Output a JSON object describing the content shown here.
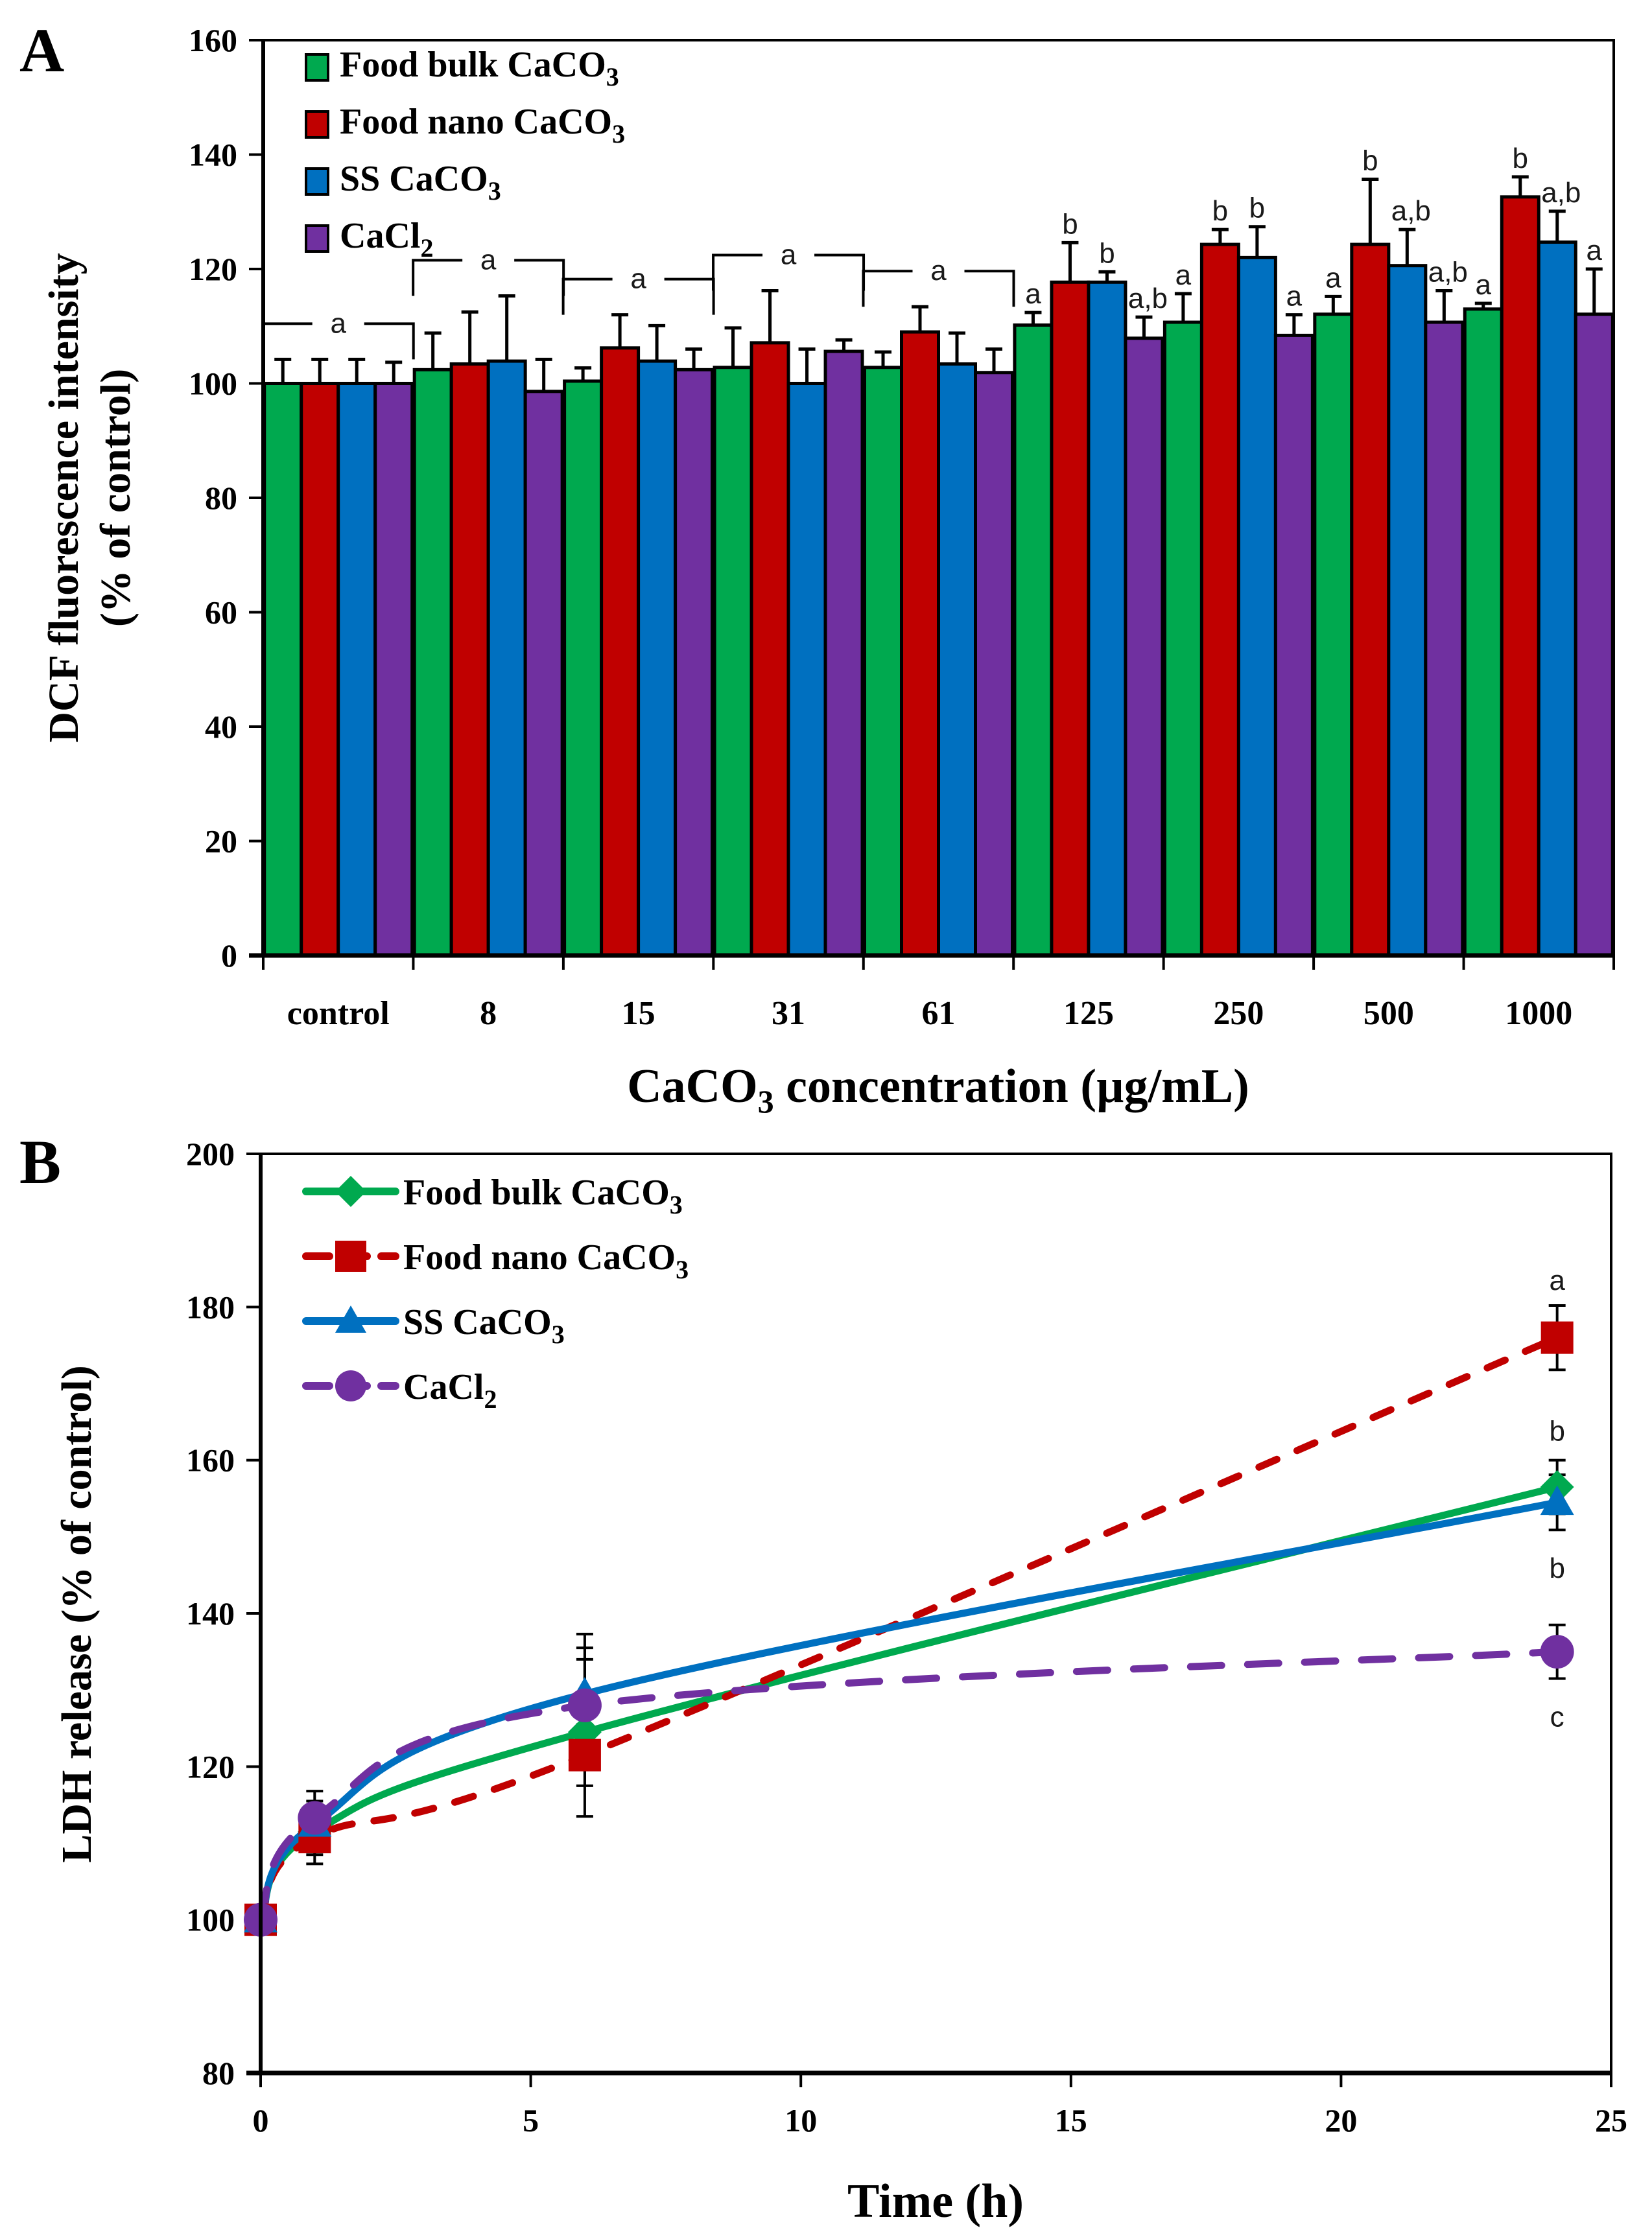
{
  "chart_data": [
    {
      "panel": "A",
      "type": "bar",
      "title": "",
      "xlabel": "CaCO3 concentration (µg/mL)",
      "xlabel_parts": {
        "pre": "CaCO",
        "sub": "3",
        "post": " concentration (µg/mL)"
      },
      "ylabel_line1": "DCF fluorescence intensity",
      "ylabel_line2": "(% of control)",
      "ylim": [
        0,
        160
      ],
      "yticks": [
        0,
        20,
        40,
        60,
        80,
        100,
        120,
        140,
        160
      ],
      "grid": false,
      "legend_position": "top-left",
      "categories": [
        "control",
        "8",
        "15",
        "31",
        "61",
        "125",
        "250",
        "500",
        "1000"
      ],
      "series": [
        {
          "name": "Food bulk CaCO3",
          "name_pre": "Food bulk CaCO",
          "name_sub": "3",
          "color": "#00A94F",
          "values": [
            100,
            102.4,
            100.4,
            102.8,
            102.8,
            110.2,
            110.7,
            112.1,
            113.0
          ],
          "error": [
            4.2,
            6.4,
            2.3,
            6.9,
            2.7,
            2.2,
            5.0,
            3.1,
            1.0
          ],
          "letters": [
            "",
            "",
            "",
            "",
            "",
            "a",
            "a",
            "a",
            "a"
          ]
        },
        {
          "name": "Food nano CaCO3",
          "name_pre": "Food nano CaCO",
          "name_sub": "3",
          "color": "#C00000",
          "values": [
            100,
            103.4,
            106.2,
            107.1,
            109.0,
            117.7,
            124.3,
            124.3,
            132.6
          ],
          "error": [
            4.2,
            9.1,
            5.8,
            9.1,
            4.4,
            6.9,
            2.6,
            11.4,
            3.5
          ],
          "letters": [
            "",
            "",
            "",
            "",
            "",
            "b",
            "b",
            "b",
            "b"
          ]
        },
        {
          "name": "SS CaCO3",
          "name_pre": "SS CaCO",
          "name_sub": "3",
          "color": "#0070C0",
          "values": [
            100,
            103.9,
            103.9,
            100,
            103.4,
            117.7,
            122.0,
            120.6,
            124.7
          ],
          "error": [
            4.2,
            11.4,
            6.2,
            6.0,
            5.4,
            1.8,
            5.4,
            6.3,
            5.4
          ],
          "letters": [
            "",
            "",
            "",
            "",
            "",
            "b",
            "b",
            "a,b",
            "a,b"
          ]
        },
        {
          "name": "CaCl2",
          "name_pre": "CaCl",
          "name_sub": "2",
          "color": "#7030A0",
          "values": [
            100,
            98.6,
            102.4,
            105.6,
            101.9,
            107.9,
            108.4,
            110.7,
            112.1
          ],
          "error": [
            3.7,
            5.6,
            3.6,
            2.0,
            4.1,
            3.7,
            3.6,
            5.5,
            7.9
          ],
          "letters": [
            "",
            "",
            "",
            "",
            "",
            "a,b",
            "a",
            "a,b",
            "a"
          ]
        }
      ],
      "group_brackets": [
        {
          "category": "control",
          "label": "a"
        },
        {
          "category": "8",
          "label": "a"
        },
        {
          "category": "15",
          "label": "a"
        },
        {
          "category": "31",
          "label": "a"
        },
        {
          "category": "61",
          "label": "a"
        }
      ]
    },
    {
      "panel": "B",
      "type": "line",
      "title": "",
      "xlabel": "Time (h)",
      "ylabel": "LDH release (% of control)",
      "xlim": [
        0,
        25
      ],
      "ylim": [
        80,
        200
      ],
      "xticks": [
        0,
        5,
        10,
        15,
        20,
        25
      ],
      "yticks": [
        80,
        100,
        120,
        140,
        160,
        180,
        200
      ],
      "grid": false,
      "legend_position": "top-left",
      "x": [
        0,
        1,
        6,
        24
      ],
      "series": [
        {
          "name": "Food bulk CaCO3",
          "name_pre": "Food bulk CaCO",
          "name_sub": "3",
          "color": "#00A94F",
          "marker": "diamond",
          "line": "solid",
          "values": [
            100,
            111.5,
            124.5,
            156.5
          ],
          "error": [
            0,
            3,
            11,
            3.5
          ],
          "end_letter": "b"
        },
        {
          "name": "Food nano CaCO3",
          "name_pre": "Food nano CaCO",
          "name_sub": "3",
          "color": "#C00000",
          "marker": "square",
          "line": "dashed",
          "values": [
            100,
            110.8,
            121.5,
            176
          ],
          "error": [
            0,
            3.5,
            4,
            4.2
          ],
          "end_letter": "a"
        },
        {
          "name": "SS CaCO3",
          "name_pre": "SS CaCO",
          "name_sub": "3",
          "color": "#0070C0",
          "marker": "triangle",
          "line": "solid",
          "values": [
            100,
            112.5,
            129.5,
            154.5
          ],
          "error": [
            0,
            3,
            7.8,
            3.6
          ],
          "end_letter": "b"
        },
        {
          "name": "CaCl2",
          "name_pre": "CaCl",
          "name_sub": "2",
          "color": "#7030A0",
          "marker": "circle",
          "line": "dashed",
          "values": [
            100,
            113.3,
            128,
            135
          ],
          "error": [
            0,
            3.5,
            6,
            3.5
          ],
          "end_letter": "c"
        }
      ]
    }
  ]
}
